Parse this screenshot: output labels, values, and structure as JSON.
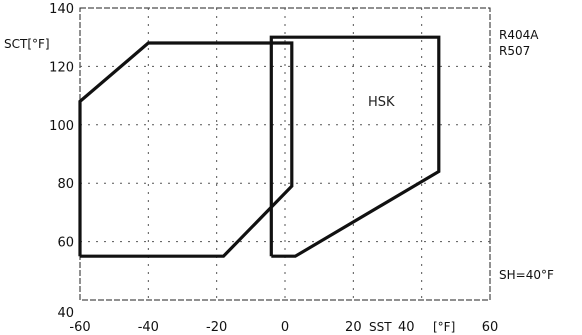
{
  "chart_data": {
    "type": "line",
    "xlabel": "SST",
    "ylabel": "SCT[°F]",
    "xlim": [
      -60,
      60
    ],
    "ylim": [
      40,
      140
    ],
    "x_ticks": [
      -60,
      -40,
      -20,
      0,
      20,
      40,
      60
    ],
    "y_ticks": [
      40,
      60,
      80,
      100,
      120,
      140
    ],
    "x_tick_labels": [
      "-60",
      "-40",
      "-20",
      "0",
      "20",
      "40",
      "60"
    ],
    "y_tick_labels": [
      "40",
      "60",
      "80",
      "100",
      "120",
      "140"
    ],
    "x_unit": "[°F]",
    "grid": true,
    "refrigerants": [
      "R404A",
      "R507"
    ],
    "superheat_note": "SH=40°F",
    "series": [
      {
        "name": "",
        "x": [
          -60,
          -60,
          -40,
          2,
          2,
          -18,
          -60
        ],
        "y": [
          55,
          108,
          128,
          128,
          79,
          55,
          55
        ]
      },
      {
        "name": "HSK",
        "x": [
          -4,
          -4,
          45,
          45,
          3,
          -4
        ],
        "y": [
          55,
          130,
          130,
          84,
          55,
          55
        ]
      }
    ]
  }
}
